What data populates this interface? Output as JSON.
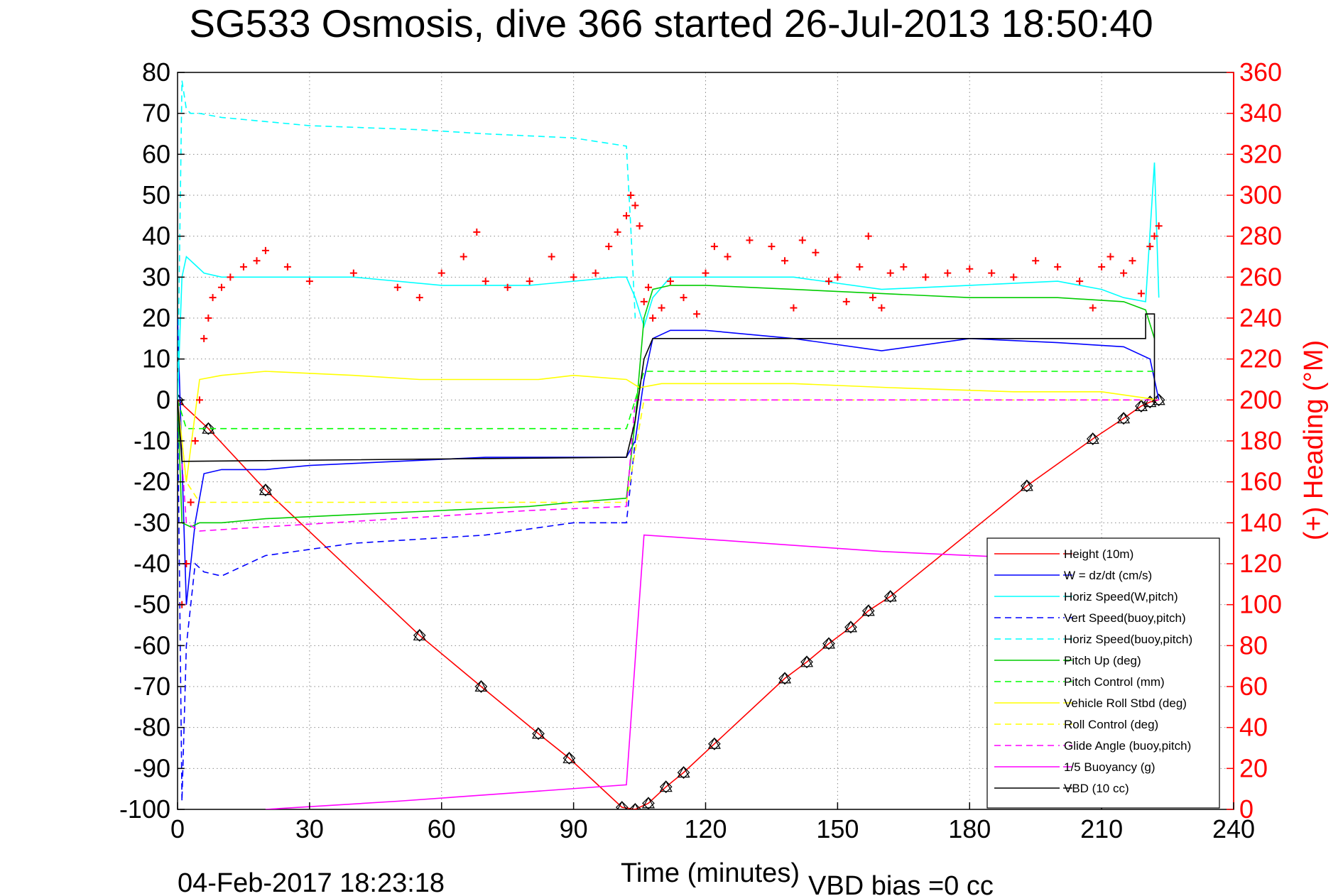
{
  "chart_data": {
    "type": "line",
    "title": "SG533 Osmosis, dive 366 started 26-Jul-2013 18:50:40",
    "xlabel": "Time (minutes)",
    "ylabel": "",
    "y2label": "(+) Heading (°M)",
    "xlim": [
      0,
      240
    ],
    "ylim": [
      -100,
      80
    ],
    "y2lim": [
      0,
      360
    ],
    "xticks": [
      "0",
      "30",
      "60",
      "90",
      "120",
      "150",
      "180",
      "210",
      "240"
    ],
    "yticks": [
      "80",
      "70",
      "60",
      "50",
      "40",
      "30",
      "20",
      "10",
      "0",
      "-10",
      "-20",
      "-30",
      "-40",
      "-50",
      "-60",
      "-70",
      "-80",
      "-90",
      "-100"
    ],
    "y2ticks": [
      "360",
      "340",
      "320",
      "300",
      "280",
      "260",
      "240",
      "220",
      "200",
      "180",
      "160",
      "140",
      "120",
      "100",
      "80",
      "60",
      "40",
      "20",
      "0"
    ],
    "grid": true,
    "legend_position": "bottom-right",
    "footer_left": "04-Feb-2017 18:23:18",
    "footer_right": "VBD bias =0 cc",
    "series": [
      {
        "name": "Height (10m)",
        "color": "#ff0000",
        "style": "solid",
        "x": [
          0,
          7,
          20,
          55,
          69,
          82,
          89,
          101,
          104,
          107,
          111,
          115,
          122,
          138,
          143,
          148,
          153,
          157,
          162,
          193,
          208,
          215,
          219,
          221,
          223
        ],
        "y": [
          0,
          -7,
          -22,
          -57.5,
          -70,
          -81.5,
          -87.5,
          -99.5,
          -100,
          -98.5,
          -94.5,
          -91,
          -84,
          -68,
          -64,
          -59.5,
          -55.5,
          -51.5,
          -48,
          -21,
          -9.5,
          -4.5,
          -1.5,
          -0.5,
          0
        ]
      },
      {
        "name": "W = dz/dt (cm/s)",
        "color": "#0000ff",
        "style": "solid",
        "x": [
          0,
          1,
          2,
          4,
          6,
          10,
          20,
          30,
          50,
          70,
          90,
          102,
          104,
          106,
          108,
          112,
          120,
          140,
          160,
          180,
          200,
          215,
          221,
          223
        ],
        "y": [
          20,
          -15,
          -50,
          -30,
          -18,
          -17,
          -17,
          -16,
          -15,
          -14,
          -14,
          -14,
          -10,
          5,
          15,
          17,
          17,
          15,
          12,
          15,
          14,
          13,
          10,
          0
        ]
      },
      {
        "name": "Horiz Speed(W,pitch)",
        "color": "#00ffff",
        "style": "solid",
        "x": [
          0,
          1,
          2,
          4,
          6,
          10,
          20,
          40,
          60,
          80,
          100,
          102,
          104,
          106,
          108,
          112,
          120,
          140,
          160,
          180,
          200,
          210,
          215,
          220,
          222,
          223
        ],
        "y": [
          0,
          30,
          35,
          33,
          31,
          30,
          30,
          30,
          28,
          28,
          30,
          30,
          25,
          18,
          25,
          30,
          30,
          30,
          27,
          28,
          29,
          27,
          25,
          24,
          58,
          25
        ]
      },
      {
        "name": "Vert Speed(buoy,pitch)",
        "color": "#0000ff",
        "style": "dashed",
        "x": [
          0,
          1,
          2,
          4,
          6,
          10,
          20,
          40,
          55,
          70,
          90,
          102,
          104
        ],
        "y": [
          0,
          -98,
          -60,
          -40,
          -42,
          -43,
          -38,
          -35,
          -34,
          -33,
          -30,
          -30,
          -10
        ]
      },
      {
        "name": "Horiz Speed(buoy,pitch)",
        "color": "#00ffff",
        "style": "dashed",
        "x": [
          0,
          1,
          2,
          3,
          5,
          10,
          30,
          55,
          70,
          90,
          102,
          103,
          104
        ],
        "y": [
          0,
          78,
          71,
          70,
          70,
          69,
          67,
          66,
          65,
          64,
          62,
          42,
          20
        ]
      },
      {
        "name": "Pitch Up (deg)",
        "color": "#00cc00",
        "style": "solid",
        "x": [
          0,
          1,
          3,
          5,
          10,
          20,
          40,
          60,
          80,
          90,
          102,
          104,
          106,
          108,
          112,
          120,
          140,
          160,
          180,
          200,
          215,
          220,
          222
        ],
        "y": [
          0,
          -30,
          -31,
          -30,
          -30,
          -29,
          -28,
          -27,
          -26,
          -25,
          -24,
          -5,
          20,
          27,
          28,
          28,
          27,
          26,
          25,
          25,
          24,
          22,
          15
        ]
      },
      {
        "name": "Pitch Control (mm)",
        "color": "#00ff00",
        "style": "dashed",
        "x": [
          0,
          2,
          4,
          20,
          102,
          104,
          106,
          110,
          222
        ],
        "y": [
          0,
          -7,
          -7,
          -7,
          -7,
          0,
          7,
          7,
          7
        ]
      },
      {
        "name": "Vehicle Roll Stbd (deg)",
        "color": "#ffff00",
        "style": "solid",
        "x": [
          0,
          2,
          5,
          10,
          20,
          40,
          55,
          56,
          80,
          82,
          90,
          102,
          105,
          110,
          140,
          162,
          190,
          210,
          223
        ],
        "y": [
          0,
          -20,
          5,
          6,
          7,
          6,
          5,
          5,
          5,
          5,
          6,
          5,
          3,
          4,
          4,
          3,
          2,
          2,
          0
        ]
      },
      {
        "name": "Roll Control (deg)",
        "color": "#ffff00",
        "style": "dashed",
        "x": [
          0,
          2,
          5,
          102,
          106,
          107,
          223
        ],
        "y": [
          0,
          -20,
          -25,
          -25,
          0,
          0,
          0
        ]
      },
      {
        "name": "Glide Angle (buoy,pitch)",
        "color": "#ff00ff",
        "style": "dashed",
        "x": [
          0,
          2,
          5,
          20,
          50,
          80,
          102,
          104,
          106,
          223
        ],
        "y": [
          0,
          -30,
          -32,
          -31,
          -29,
          -27,
          -26,
          0,
          0,
          0
        ]
      },
      {
        "name": "1/5 Buoyancy (g)",
        "color": "#ff00ff",
        "style": "solid",
        "x": [
          20,
          50,
          102,
          106,
          120,
          160,
          200
        ],
        "y": [
          -100,
          -98,
          -94,
          -33,
          -34,
          -37,
          -39
        ]
      },
      {
        "name": "VBD (10 cc)",
        "color": "#000000",
        "style": "solid",
        "x": [
          0,
          1,
          102,
          104,
          106,
          108,
          220,
          220,
          222,
          222
        ],
        "y": [
          0,
          -15,
          -14,
          -5,
          10,
          15,
          15,
          21,
          21,
          0
        ]
      },
      {
        "name": "",
        "color": "#ff0000",
        "style": "markers",
        "axis": "right",
        "x": [
          1,
          2,
          3,
          4,
          5,
          6,
          7,
          8,
          10,
          12,
          15,
          18,
          20,
          25,
          30,
          40,
          50,
          55,
          60,
          65,
          68,
          70,
          75,
          80,
          85,
          90,
          95,
          98,
          100,
          102,
          103,
          104,
          105,
          106,
          107,
          108,
          110,
          112,
          115,
          118,
          120,
          122,
          125,
          130,
          135,
          138,
          140,
          142,
          145,
          148,
          150,
          152,
          155,
          157,
          158,
          160,
          162,
          165,
          170,
          175,
          180,
          185,
          190,
          195,
          200,
          205,
          208,
          210,
          212,
          215,
          217,
          219,
          221,
          222,
          223
        ],
        "y": [
          100,
          120,
          150,
          180,
          200,
          230,
          240,
          250,
          255,
          260,
          265,
          268,
          273,
          265,
          258,
          262,
          255,
          250,
          262,
          270,
          282,
          258,
          255,
          258,
          270,
          260,
          262,
          275,
          282,
          290,
          300,
          295,
          285,
          248,
          255,
          240,
          245,
          258,
          250,
          242,
          262,
          275,
          270,
          278,
          275,
          268,
          245,
          278,
          272,
          258,
          260,
          248,
          265,
          280,
          250,
          245,
          262,
          265,
          260,
          262,
          264,
          262,
          260,
          268,
          265,
          258,
          245,
          265,
          270,
          262,
          268,
          252,
          275,
          280,
          285
        ]
      }
    ]
  }
}
